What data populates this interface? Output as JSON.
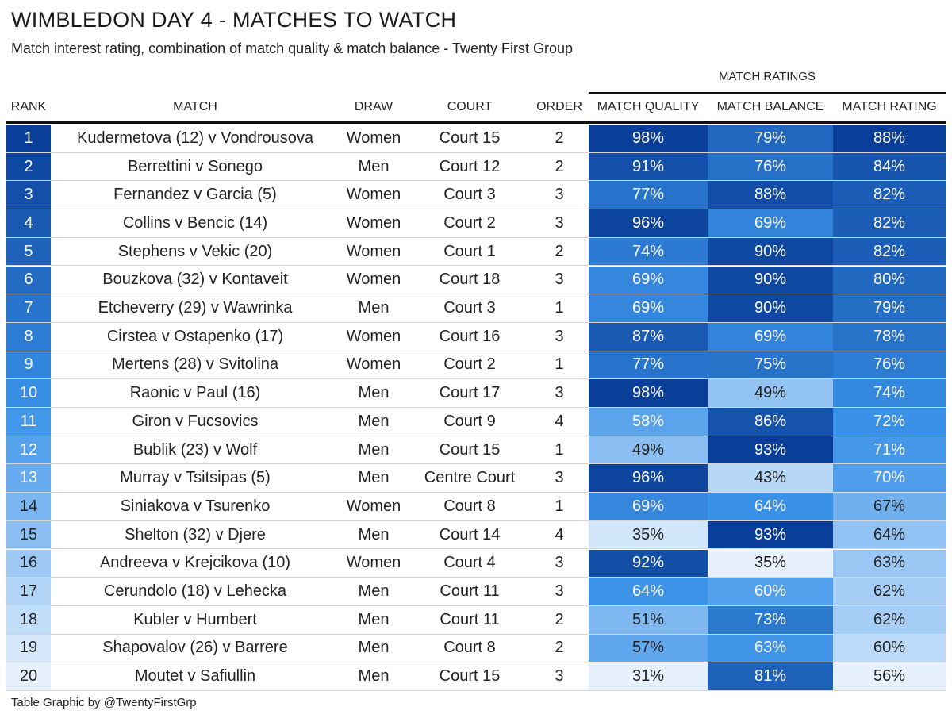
{
  "title": "WIMBLEDON DAY 4 - MATCHES TO WATCH",
  "subtitle": "Match interest rating, combination of match quality & match balance - Twenty First Group",
  "group_header": "MATCH RATINGS",
  "columns": {
    "rank": "RANK",
    "match": "MATCH",
    "draw": "DRAW",
    "court": "COURT",
    "order": "ORDER",
    "quality": "MATCH QUALITY",
    "balance": "MATCH BALANCE",
    "rating": "MATCH RATING"
  },
  "footer": "Table Graphic by @TwentyFirstGrp",
  "colors": {
    "scale_low": "#e6f1fd",
    "scale_high": "#0a3f99",
    "text_dark": "#222222",
    "text_light": "#ffffff"
  },
  "chart_data": {
    "type": "table",
    "title": "WIMBLEDON DAY 4 - MATCHES TO WATCH",
    "rows": [
      {
        "rank": 1,
        "match": "Kudermetova (12) v Vondrousova",
        "draw": "Women",
        "court": "Court 15",
        "order": 2,
        "quality": 98,
        "balance": 79,
        "rating": 88
      },
      {
        "rank": 2,
        "match": "Berrettini v Sonego",
        "draw": "Men",
        "court": "Court 12",
        "order": 2,
        "quality": 91,
        "balance": 76,
        "rating": 84
      },
      {
        "rank": 3,
        "match": "Fernandez v Garcia (5)",
        "draw": "Women",
        "court": "Court 3",
        "order": 3,
        "quality": 77,
        "balance": 88,
        "rating": 82
      },
      {
        "rank": 4,
        "match": "Collins v Bencic (14)",
        "draw": "Women",
        "court": "Court 2",
        "order": 3,
        "quality": 96,
        "balance": 69,
        "rating": 82
      },
      {
        "rank": 5,
        "match": "Stephens v Vekic (20)",
        "draw": "Women",
        "court": "Court 1",
        "order": 2,
        "quality": 74,
        "balance": 90,
        "rating": 82
      },
      {
        "rank": 6,
        "match": "Bouzkova (32) v Kontaveit",
        "draw": "Women",
        "court": "Court 18",
        "order": 3,
        "quality": 69,
        "balance": 90,
        "rating": 80
      },
      {
        "rank": 7,
        "match": "Etcheverry (29) v Wawrinka",
        "draw": "Men",
        "court": "Court 3",
        "order": 1,
        "quality": 69,
        "balance": 90,
        "rating": 79
      },
      {
        "rank": 8,
        "match": "Cirstea v Ostapenko (17)",
        "draw": "Women",
        "court": "Court 16",
        "order": 3,
        "quality": 87,
        "balance": 69,
        "rating": 78
      },
      {
        "rank": 9,
        "match": "Mertens (28) v Svitolina",
        "draw": "Women",
        "court": "Court 2",
        "order": 1,
        "quality": 77,
        "balance": 75,
        "rating": 76
      },
      {
        "rank": 10,
        "match": "Raonic v Paul (16)",
        "draw": "Men",
        "court": "Court 17",
        "order": 3,
        "quality": 98,
        "balance": 49,
        "rating": 74
      },
      {
        "rank": 11,
        "match": "Giron v Fucsovics",
        "draw": "Men",
        "court": "Court 9",
        "order": 4,
        "quality": 58,
        "balance": 86,
        "rating": 72
      },
      {
        "rank": 12,
        "match": "Bublik (23) v Wolf",
        "draw": "Men",
        "court": "Court 15",
        "order": 1,
        "quality": 49,
        "balance": 93,
        "rating": 71
      },
      {
        "rank": 13,
        "match": "Murray v Tsitsipas (5)",
        "draw": "Men",
        "court": "Centre Court",
        "order": 3,
        "quality": 96,
        "balance": 43,
        "rating": 70
      },
      {
        "rank": 14,
        "match": "Siniakova v Tsurenko",
        "draw": "Women",
        "court": "Court 8",
        "order": 1,
        "quality": 69,
        "balance": 64,
        "rating": 67
      },
      {
        "rank": 15,
        "match": "Shelton (32) v Djere",
        "draw": "Men",
        "court": "Court 14",
        "order": 4,
        "quality": 35,
        "balance": 93,
        "rating": 64
      },
      {
        "rank": 16,
        "match": "Andreeva v Krejcikova (10)",
        "draw": "Women",
        "court": "Court 4",
        "order": 3,
        "quality": 92,
        "balance": 35,
        "rating": 63
      },
      {
        "rank": 17,
        "match": "Cerundolo (18) v Lehecka",
        "draw": "Men",
        "court": "Court 11",
        "order": 3,
        "quality": 64,
        "balance": 60,
        "rating": 62
      },
      {
        "rank": 18,
        "match": "Kubler v Humbert",
        "draw": "Men",
        "court": "Court 11",
        "order": 2,
        "quality": 51,
        "balance": 73,
        "rating": 62
      },
      {
        "rank": 19,
        "match": "Shapovalov (26) v Barrere",
        "draw": "Men",
        "court": "Court 8",
        "order": 2,
        "quality": 57,
        "balance": 63,
        "rating": 60
      },
      {
        "rank": 20,
        "match": "Moutet v Safiullin",
        "draw": "Men",
        "court": "Court 15",
        "order": 3,
        "quality": 31,
        "balance": 81,
        "rating": 56
      }
    ]
  }
}
